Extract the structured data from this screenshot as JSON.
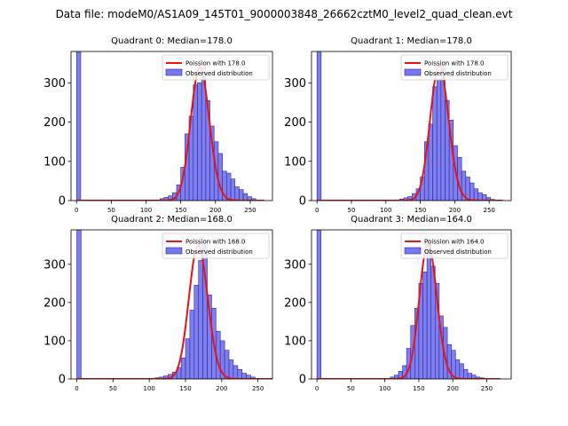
{
  "figure": {
    "suptitle": "Data file: modeM0/AS1A09_145T01_9000003848_26662cztM0_level2_quad_clean.evt"
  },
  "colors": {
    "bar_fill": "#7777ee",
    "bar_edge": "#2a2aa0",
    "curve": "#ee1111"
  },
  "chart_data": [
    {
      "type": "bar",
      "title": "Quadrant 0: Median=178.0",
      "median": 178.0,
      "xlim": [
        -8,
        282
      ],
      "ylim": [
        0,
        380
      ],
      "xticks": [
        0,
        50,
        100,
        150,
        200,
        250
      ],
      "yticks": [
        0,
        100,
        200,
        300
      ],
      "bin_width": 6,
      "bins": [
        {
          "x": 0,
          "y": 380
        },
        {
          "x": 120,
          "y": 5
        },
        {
          "x": 126,
          "y": 8
        },
        {
          "x": 132,
          "y": 12
        },
        {
          "x": 138,
          "y": 20
        },
        {
          "x": 144,
          "y": 40
        },
        {
          "x": 150,
          "y": 85
        },
        {
          "x": 156,
          "y": 170
        },
        {
          "x": 162,
          "y": 215
        },
        {
          "x": 168,
          "y": 295
        },
        {
          "x": 174,
          "y": 300
        },
        {
          "x": 180,
          "y": 340
        },
        {
          "x": 186,
          "y": 255
        },
        {
          "x": 192,
          "y": 190
        },
        {
          "x": 198,
          "y": 150
        },
        {
          "x": 204,
          "y": 120
        },
        {
          "x": 210,
          "y": 75
        },
        {
          "x": 216,
          "y": 70
        },
        {
          "x": 222,
          "y": 55
        },
        {
          "x": 228,
          "y": 35
        },
        {
          "x": 234,
          "y": 28
        },
        {
          "x": 240,
          "y": 18
        },
        {
          "x": 246,
          "y": 10
        },
        {
          "x": 252,
          "y": 5
        }
      ],
      "legend": {
        "location": "upper right",
        "poisson_label": "Poission with 178.0",
        "observed_label": "Observed distribution"
      }
    },
    {
      "type": "bar",
      "title": "Quadrant 1: Median=178.0",
      "median": 178.0,
      "xlim": [
        -8,
        282
      ],
      "ylim": [
        0,
        380
      ],
      "xticks": [
        0,
        50,
        100,
        150,
        200,
        250
      ],
      "yticks": [
        0,
        100,
        200,
        300
      ],
      "bin_width": 6,
      "bins": [
        {
          "x": 0,
          "y": 380
        },
        {
          "x": 120,
          "y": 4
        },
        {
          "x": 126,
          "y": 7
        },
        {
          "x": 132,
          "y": 10
        },
        {
          "x": 138,
          "y": 18
        },
        {
          "x": 144,
          "y": 30
        },
        {
          "x": 150,
          "y": 60
        },
        {
          "x": 156,
          "y": 150
        },
        {
          "x": 162,
          "y": 195
        },
        {
          "x": 168,
          "y": 290
        },
        {
          "x": 174,
          "y": 310
        },
        {
          "x": 180,
          "y": 345
        },
        {
          "x": 186,
          "y": 255
        },
        {
          "x": 192,
          "y": 205
        },
        {
          "x": 198,
          "y": 140
        },
        {
          "x": 204,
          "y": 110
        },
        {
          "x": 210,
          "y": 75
        },
        {
          "x": 216,
          "y": 60
        },
        {
          "x": 222,
          "y": 45
        },
        {
          "x": 228,
          "y": 30
        },
        {
          "x": 234,
          "y": 20
        },
        {
          "x": 240,
          "y": 15
        },
        {
          "x": 246,
          "y": 8
        },
        {
          "x": 252,
          "y": 3
        }
      ],
      "legend": {
        "location": "upper right",
        "poisson_label": "Poission with 178.0",
        "observed_label": "Observed distribution"
      }
    },
    {
      "type": "bar",
      "title": "Quadrant 2: Median=168.0",
      "median": 168.0,
      "xlim": [
        -8,
        270
      ],
      "ylim": [
        0,
        390
      ],
      "xticks": [
        0,
        50,
        100,
        150,
        200,
        250
      ],
      "yticks": [
        0,
        100,
        200,
        300
      ],
      "bin_width": 6,
      "bins": [
        {
          "x": 0,
          "y": 390
        },
        {
          "x": 108,
          "y": 3
        },
        {
          "x": 114,
          "y": 5
        },
        {
          "x": 120,
          "y": 8
        },
        {
          "x": 126,
          "y": 12
        },
        {
          "x": 132,
          "y": 18
        },
        {
          "x": 138,
          "y": 30
        },
        {
          "x": 144,
          "y": 55
        },
        {
          "x": 150,
          "y": 105
        },
        {
          "x": 156,
          "y": 180
        },
        {
          "x": 162,
          "y": 245
        },
        {
          "x": 168,
          "y": 310
        },
        {
          "x": 174,
          "y": 350
        },
        {
          "x": 180,
          "y": 220
        },
        {
          "x": 186,
          "y": 185
        },
        {
          "x": 192,
          "y": 125
        },
        {
          "x": 198,
          "y": 100
        },
        {
          "x": 204,
          "y": 75
        },
        {
          "x": 210,
          "y": 50
        },
        {
          "x": 216,
          "y": 35
        },
        {
          "x": 222,
          "y": 25
        },
        {
          "x": 228,
          "y": 15
        },
        {
          "x": 234,
          "y": 10
        },
        {
          "x": 240,
          "y": 5
        }
      ],
      "legend": {
        "location": "upper right",
        "poisson_label": "Poission with 168.0",
        "observed_label": "Observed distribution"
      }
    },
    {
      "type": "bar",
      "title": "Quadrant 3: Median=164.0",
      "median": 164.0,
      "xlim": [
        -8,
        286
      ],
      "ylim": [
        0,
        390
      ],
      "xticks": [
        0,
        50,
        100,
        150,
        200,
        250
      ],
      "yticks": [
        0,
        100,
        200,
        300
      ],
      "bin_width": 6,
      "bins": [
        {
          "x": 0,
          "y": 390
        },
        {
          "x": 108,
          "y": 5
        },
        {
          "x": 114,
          "y": 10
        },
        {
          "x": 120,
          "y": 20
        },
        {
          "x": 126,
          "y": 35
        },
        {
          "x": 132,
          "y": 80
        },
        {
          "x": 138,
          "y": 140
        },
        {
          "x": 144,
          "y": 185
        },
        {
          "x": 150,
          "y": 250
        },
        {
          "x": 156,
          "y": 280
        },
        {
          "x": 162,
          "y": 355
        },
        {
          "x": 168,
          "y": 295
        },
        {
          "x": 174,
          "y": 250
        },
        {
          "x": 180,
          "y": 165
        },
        {
          "x": 186,
          "y": 135
        },
        {
          "x": 192,
          "y": 90
        },
        {
          "x": 198,
          "y": 75
        },
        {
          "x": 204,
          "y": 50
        },
        {
          "x": 210,
          "y": 40
        },
        {
          "x": 216,
          "y": 25
        },
        {
          "x": 222,
          "y": 15
        },
        {
          "x": 228,
          "y": 10
        },
        {
          "x": 234,
          "y": 5
        },
        {
          "x": 240,
          "y": 3
        }
      ],
      "legend": {
        "location": "upper right",
        "poisson_label": "Poission with 164.0",
        "observed_label": "Observed distribution"
      }
    }
  ]
}
